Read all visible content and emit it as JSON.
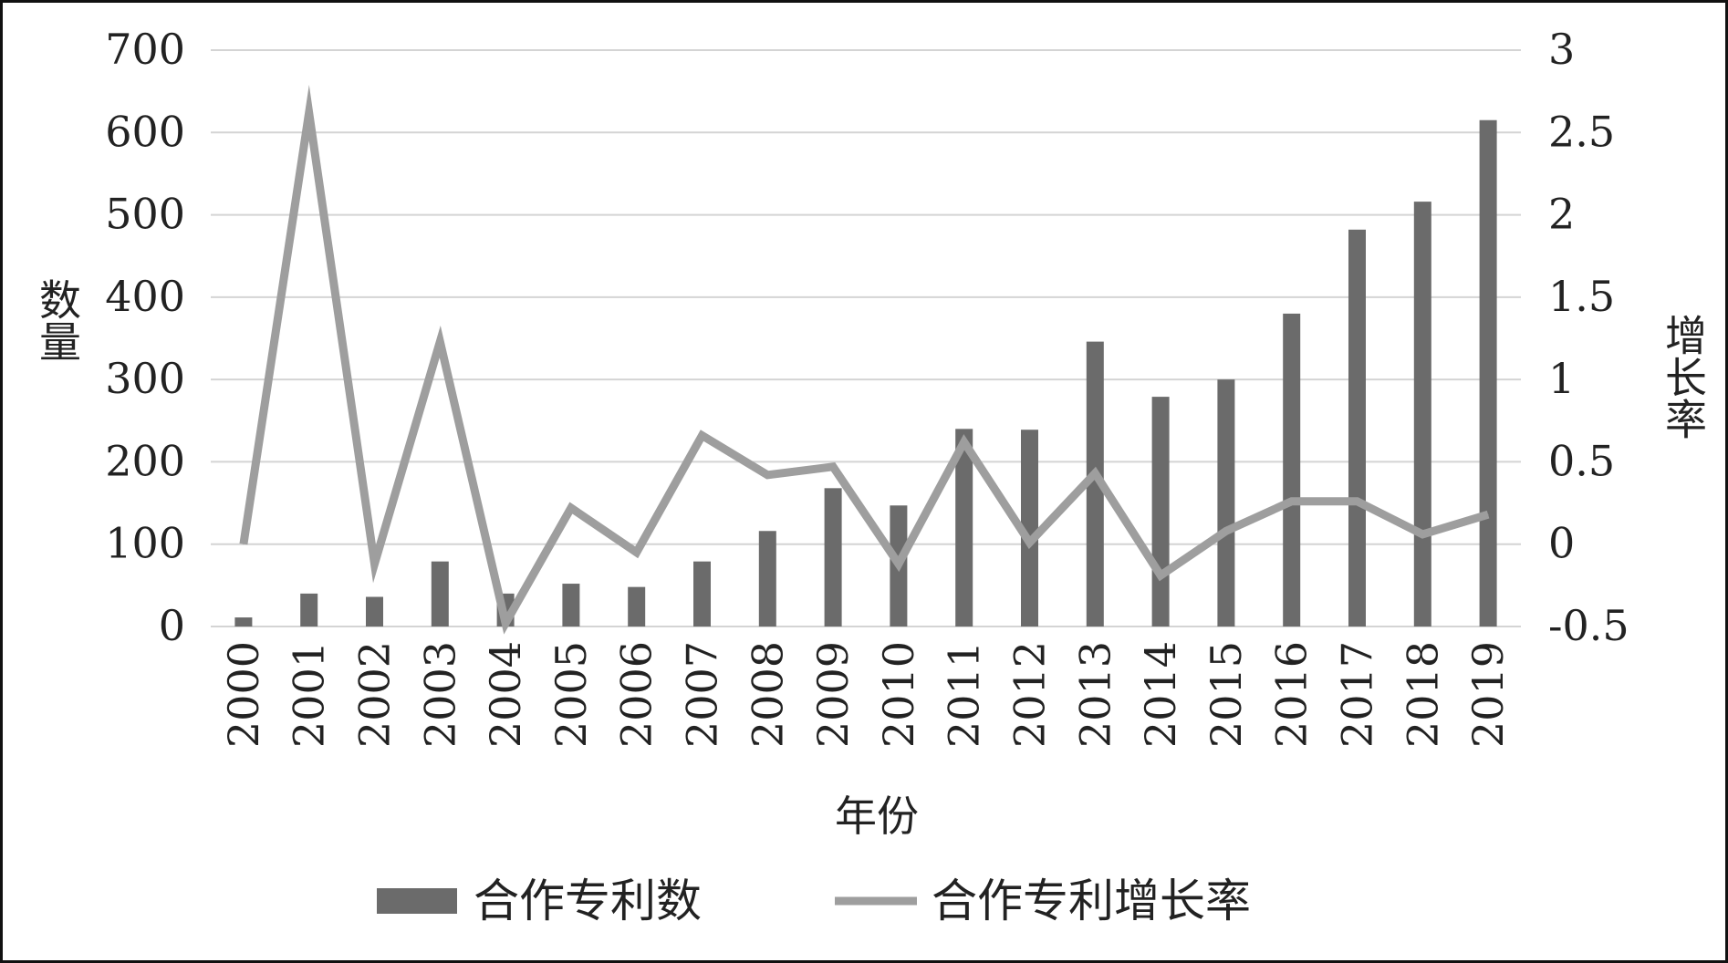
{
  "chart_data": {
    "type": "bar",
    "categories": [
      "2000",
      "2001",
      "2002",
      "2003",
      "2004",
      "2005",
      "2006",
      "2007",
      "2008",
      "2009",
      "2010",
      "2011",
      "2012",
      "2013",
      "2014",
      "2015",
      "2016",
      "2017",
      "2018",
      "2019"
    ],
    "series": [
      {
        "name": "合作专利数",
        "type": "bar",
        "axis": "left",
        "color": "#6b6b6b",
        "values": [
          11,
          40,
          36,
          79,
          40,
          52,
          48,
          79,
          116,
          168,
          147,
          240,
          239,
          346,
          279,
          300,
          380,
          482,
          516,
          615
        ]
      },
      {
        "name": "合作专利增长率",
        "type": "line",
        "axis": "right",
        "color": "#9e9e9e",
        "values": [
          0,
          2.62,
          -0.12,
          1.23,
          -0.48,
          0.22,
          -0.05,
          0.66,
          0.42,
          0.47,
          -0.12,
          0.62,
          0.01,
          0.43,
          -0.19,
          0.08,
          0.26,
          0.26,
          0.06,
          0.18
        ]
      }
    ],
    "xlabel": "年份",
    "ylabel": "数量",
    "y2label": "增长率",
    "ylim": [
      0,
      700
    ],
    "yticks": [
      0,
      100,
      200,
      300,
      400,
      500,
      600,
      700
    ],
    "y2lim": [
      -0.5,
      3
    ],
    "y2ticks": [
      "-0.5",
      "0",
      "0.5",
      "1",
      "1.5",
      "2",
      "2.5",
      "3"
    ],
    "grid": "horizontal",
    "legend_position": "bottom"
  }
}
